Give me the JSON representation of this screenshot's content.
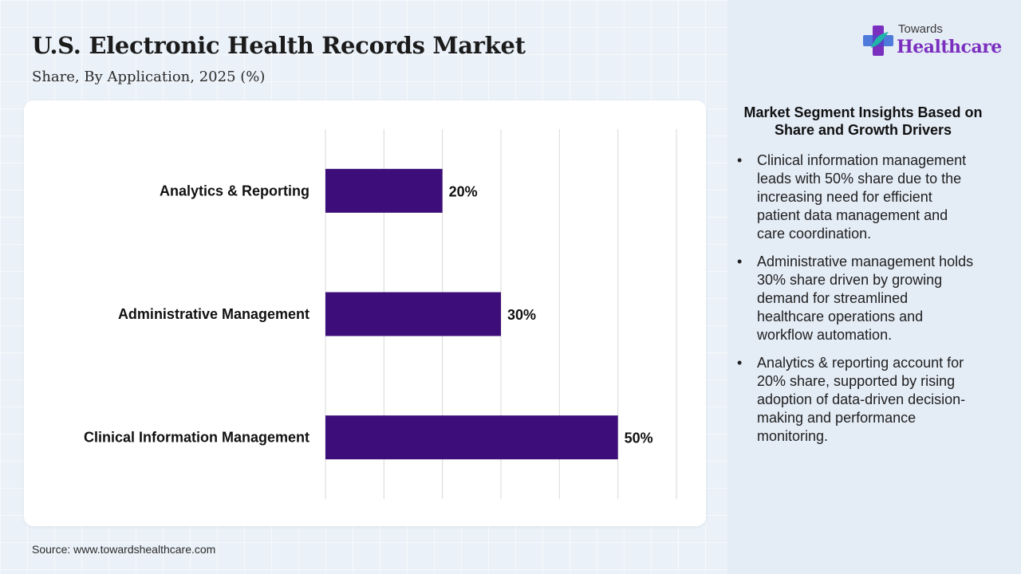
{
  "header": {
    "title": "U.S. Electronic Health Records Market",
    "subtitle": "Share, By Application, 2025 (%)"
  },
  "logo": {
    "line1": "Towards",
    "line2": "Healthcare",
    "icon": "medical-cross-icon",
    "colors": {
      "purple": "#7b2fbe",
      "teal": "#1fb5a8",
      "blue": "#3d6fd8"
    }
  },
  "chart_data": {
    "type": "bar",
    "orientation": "horizontal",
    "categories": [
      "Analytics & Reporting",
      "Administrative Management",
      "Clinical Information Management"
    ],
    "values": [
      20,
      30,
      50
    ],
    "data_labels": [
      "20%",
      "30%",
      "50%"
    ],
    "title": "",
    "xlabel": "",
    "ylabel": "",
    "xlim": [
      0,
      60
    ],
    "grid": true,
    "gridlines_x": [
      0,
      10,
      20,
      30,
      40,
      50,
      60
    ],
    "bar_color": "#3d0d7a",
    "legend": "none"
  },
  "insights": {
    "title": "Market Segment Insights Based on Share and Growth Drivers",
    "items": [
      "Clinical information management leads with 50% share due to the increasing need for efficient patient data management and care coordination.",
      "Administrative management holds 30% share driven by growing demand for streamlined healthcare operations and workflow automation.",
      "Analytics & reporting account for 20% share, supported by rising adoption of data-driven decision-making and performance monitoring."
    ],
    "bullet": "•"
  },
  "source": "Source: www.towardshealthcare.com"
}
